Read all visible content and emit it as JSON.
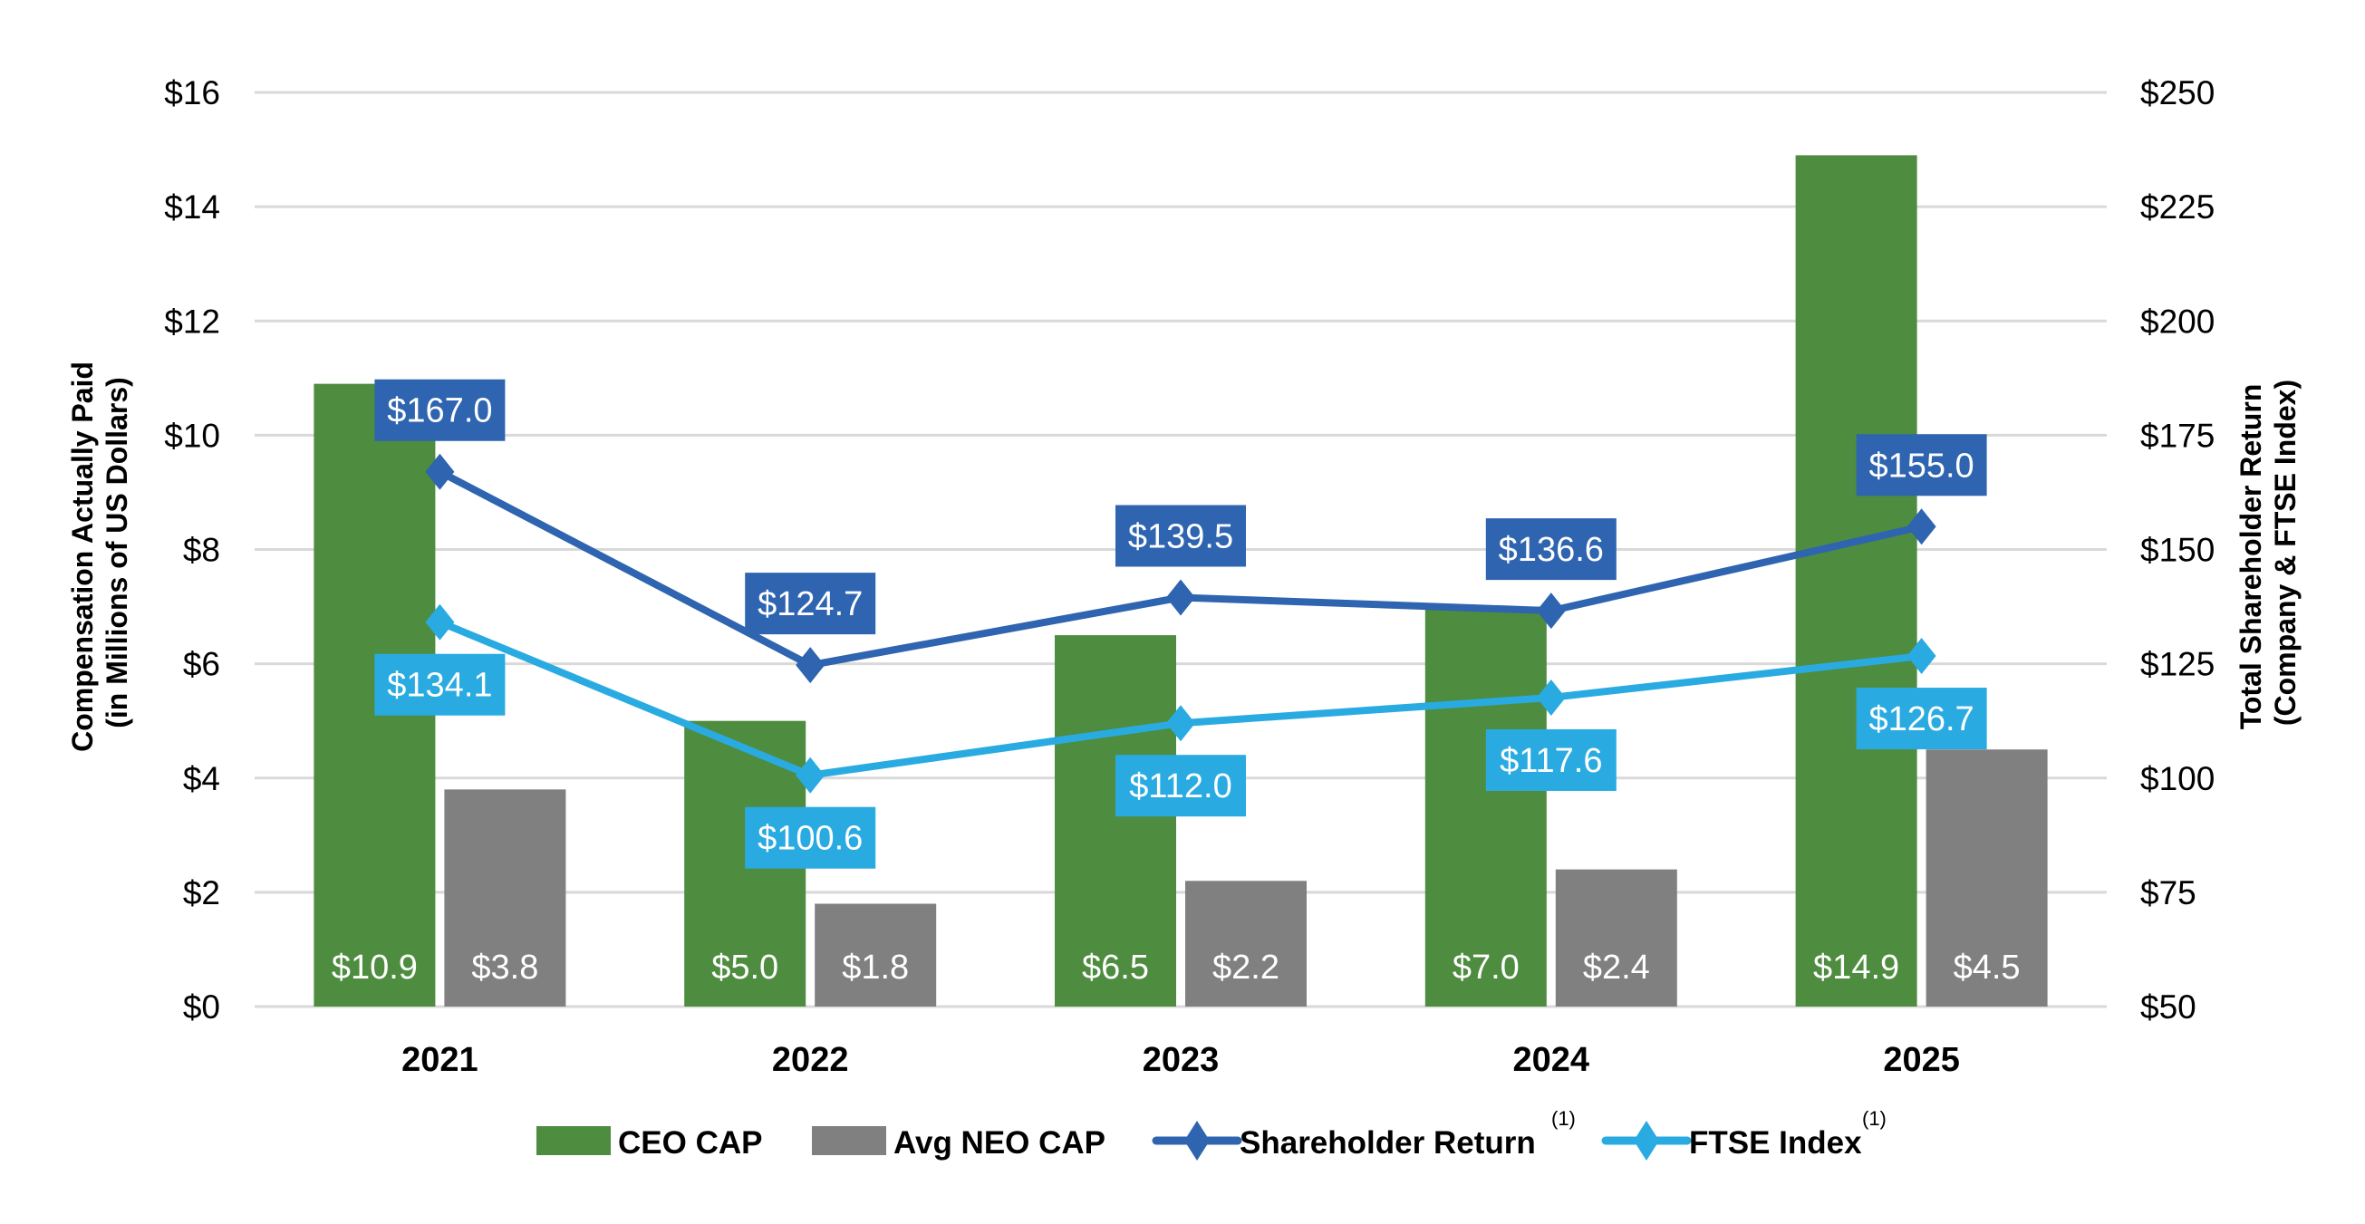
{
  "chart_data": {
    "type": "bar+line",
    "categories": [
      "2021",
      "2022",
      "2023",
      "2024",
      "2025"
    ],
    "left_axis": {
      "label_line1": "Compensation Actually Paid",
      "label_line2": "(in Millions of US Dollars)",
      "ylim": [
        0,
        16
      ],
      "ticks": [
        "$0",
        "$2",
        "$4",
        "$6",
        "$8",
        "$10",
        "$12",
        "$14",
        "$16"
      ]
    },
    "right_axis": {
      "label_line1": "Total Shareholder Return",
      "label_line2": "(Company & FTSE Index)",
      "ylim": [
        50,
        250
      ],
      "ticks": [
        "$50",
        "$75",
        "$100",
        "$125",
        "$150",
        "$175",
        "$200",
        "$225",
        "$250"
      ]
    },
    "bar_series": [
      {
        "name": "CEO CAP",
        "color": "#4E8C3F",
        "values": [
          10.9,
          5.0,
          6.5,
          7.0,
          14.9
        ],
        "labels": [
          "$10.9",
          "$5.0",
          "$6.5",
          "$7.0",
          "$14.9"
        ]
      },
      {
        "name": "Avg NEO CAP",
        "color": "#808080",
        "values": [
          3.8,
          1.8,
          2.2,
          2.4,
          4.5
        ],
        "labels": [
          "$3.8",
          "$1.8",
          "$2.2",
          "$2.4",
          "$4.5"
        ]
      }
    ],
    "line_series": [
      {
        "name": "Shareholder Return",
        "superscript": "(1)",
        "color": "#2E64B0",
        "values": [
          167.0,
          124.7,
          139.5,
          136.6,
          155.0
        ],
        "labels": [
          "$167.0",
          "$124.7",
          "$139.5",
          "$136.6",
          "$155.0"
        ]
      },
      {
        "name": "FTSE Index",
        "superscript": "(1)",
        "color": "#29ABE2",
        "values": [
          134.1,
          100.6,
          112.0,
          117.6,
          126.7
        ],
        "labels": [
          "$134.1",
          "$100.6",
          "$112.0",
          "$117.6",
          "$126.7"
        ]
      }
    ],
    "grid": true,
    "legend": "bottom"
  }
}
